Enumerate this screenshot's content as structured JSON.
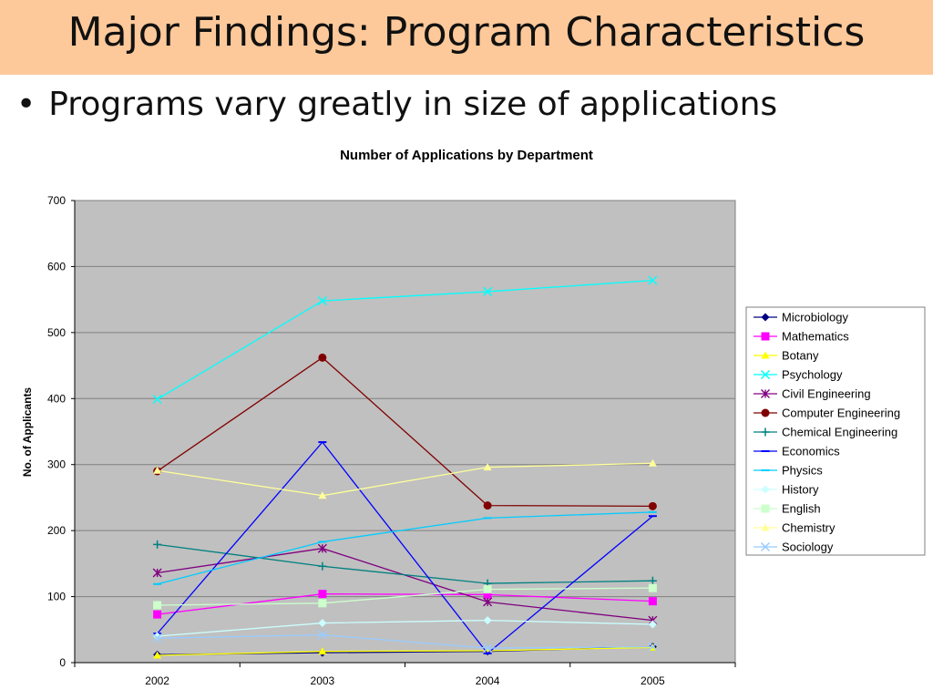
{
  "slide": {
    "title": "Major Findings: Program Characteristics",
    "bullet_marker": "•",
    "bullet": "Programs vary greatly in size of applications"
  },
  "colors": {
    "title_band": "#fdc99a",
    "plot_bg": "#c0c0c0"
  },
  "chart_data": {
    "type": "line",
    "title": "Number of Applications by Department",
    "xlabel": "",
    "ylabel": "No. of Applicants",
    "categories": [
      "2002",
      "2003",
      "2004",
      "2005"
    ],
    "ylim": [
      0,
      700
    ],
    "yticks": [
      0,
      100,
      200,
      300,
      400,
      500,
      600,
      700
    ],
    "grid": true,
    "legend_position": "right",
    "series": [
      {
        "name": "Microbiology",
        "values": [
          12,
          15,
          17,
          24
        ],
        "color": "#000080",
        "marker": "diamond"
      },
      {
        "name": "Mathematics",
        "values": [
          73,
          104,
          103,
          93
        ],
        "color": "#ff00ff",
        "marker": "square"
      },
      {
        "name": "Botany",
        "values": [
          11,
          17,
          18,
          23
        ],
        "color": "#ffff00",
        "marker": "triangle"
      },
      {
        "name": "Psychology",
        "values": [
          399,
          548,
          562,
          579
        ],
        "color": "#00ffff",
        "marker": "x"
      },
      {
        "name": "Civil Engineering",
        "values": [
          136,
          173,
          92,
          64
        ],
        "color": "#800080",
        "marker": "star"
      },
      {
        "name": "Computer Engineering",
        "values": [
          290,
          462,
          238,
          237
        ],
        "color": "#800000",
        "marker": "circle"
      },
      {
        "name": "Chemical Engineering",
        "values": [
          179,
          146,
          120,
          124
        ],
        "color": "#008080",
        "marker": "plus"
      },
      {
        "name": "Economics",
        "values": [
          44,
          334,
          14,
          222
        ],
        "color": "#0000ff",
        "marker": "dash"
      },
      {
        "name": "Physics",
        "values": [
          119,
          183,
          219,
          228
        ],
        "color": "#00ccff",
        "marker": "dash"
      },
      {
        "name": "History",
        "values": [
          40,
          60,
          64,
          58
        ],
        "color": "#ccffff",
        "marker": "diamond"
      },
      {
        "name": "English",
        "values": [
          87,
          90,
          111,
          113
        ],
        "color": "#ccffcc",
        "marker": "square"
      },
      {
        "name": "Chemistry",
        "values": [
          291,
          253,
          296,
          302
        ],
        "color": "#ffff99",
        "marker": "triangle"
      },
      {
        "name": "Sociology",
        "values": [
          37,
          42,
          22,
          24
        ],
        "color": "#99ccff",
        "marker": "x"
      }
    ]
  }
}
